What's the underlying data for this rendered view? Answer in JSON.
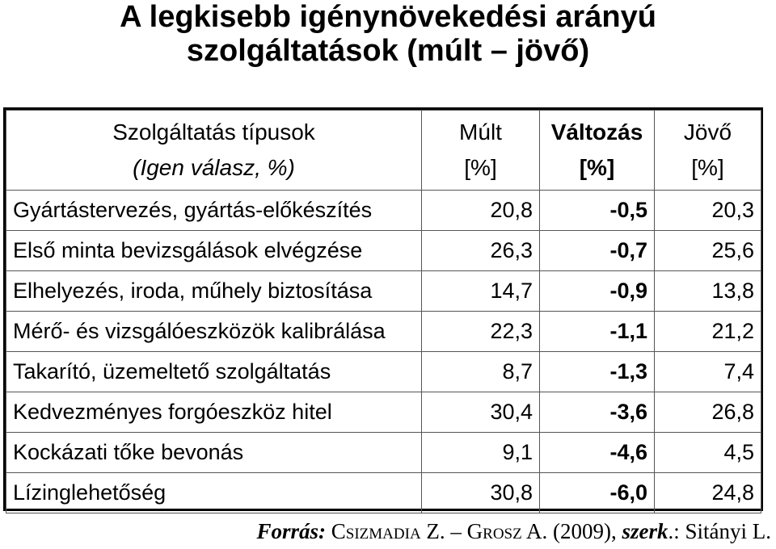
{
  "title": {
    "line1": "A legkisebb igénynövekedési arányú",
    "line2": "szolgáltatások (múlt – jövő)"
  },
  "table": {
    "header": {
      "name_line1": "Szolgáltatás típusok",
      "name_line2": "(Igen válasz, %)",
      "mult_line1": "Múlt",
      "mult_line2": "[%]",
      "valtozas_line1": "Változás",
      "valtozas_line2": "[%]",
      "jovo_line1": "Jövő",
      "jovo_line2": "[%]"
    },
    "rows": [
      {
        "name": "Gyártástervezés, gyártás-előkészítés",
        "mult": "20,8",
        "valtozas": "-0,5",
        "jovo": "20,3"
      },
      {
        "name": "Első minta bevizsgálások elvégzése",
        "mult": "26,3",
        "valtozas": "-0,7",
        "jovo": "25,6"
      },
      {
        "name": "Elhelyezés, iroda, műhely biztosítása",
        "mult": "14,7",
        "valtozas": "-0,9",
        "jovo": "13,8"
      },
      {
        "name": "Mérő- és vizsgálóeszközök kalibrálása",
        "mult": "22,3",
        "valtozas": "-1,1",
        "jovo": "21,2"
      },
      {
        "name": "Takarító, üzemeltető szolgáltatás",
        "mult": "8,7",
        "valtozas": "-1,3",
        "jovo": "7,4"
      },
      {
        "name": "Kedvezményes forgóeszköz hitel",
        "mult": "30,4",
        "valtozas": "-3,6",
        "jovo": "26,8"
      },
      {
        "name": "Kockázati tőke bevonás",
        "mult": "9,1",
        "valtozas": "-4,6",
        "jovo": "4,5"
      },
      {
        "name": "Lízinglehetőség",
        "mult": "30,8",
        "valtozas": "-6,0",
        "jovo": "24,8"
      }
    ]
  },
  "source": {
    "lead": "Forrás:",
    "authors": "Csizmadia Z. – Grosz A. (2009),",
    "editor_label": "szerk",
    "editor_rest": ".: Sitányi L."
  }
}
